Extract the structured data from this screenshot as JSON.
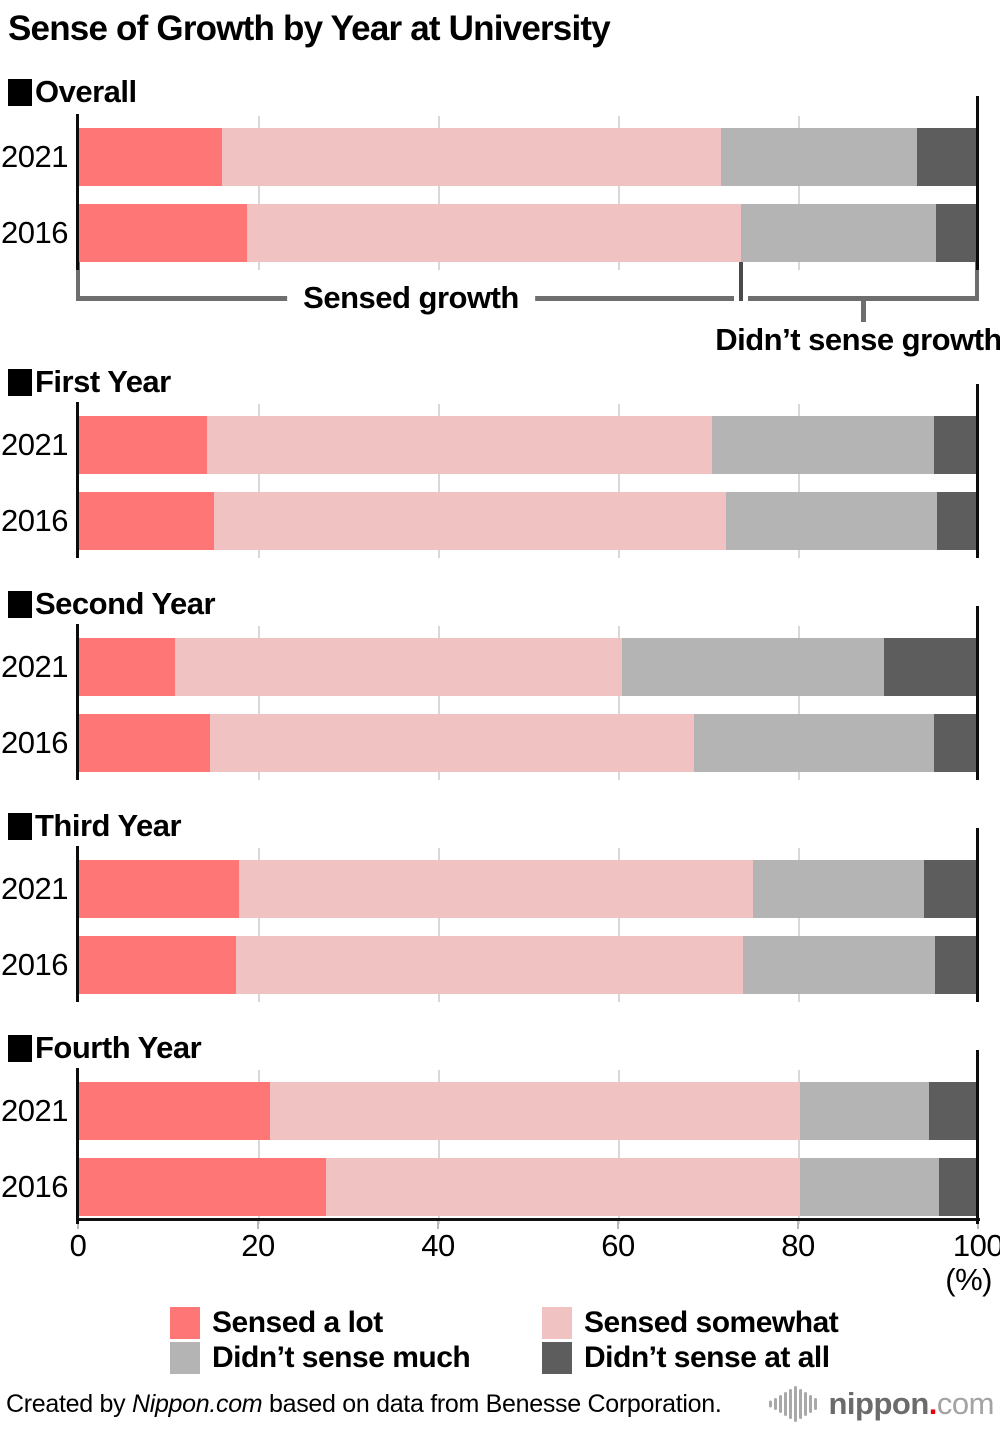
{
  "title": "Sense of Growth by Year at University",
  "chart_data": {
    "type": "bar",
    "stacked": true,
    "orientation": "horizontal",
    "unit": "%",
    "xlim": [
      0,
      100
    ],
    "x_ticks": [
      0,
      20,
      40,
      60,
      80,
      100
    ],
    "x_axis_unit_label": "(%)",
    "legend": [
      "Sensed a lot",
      "Sensed somewhat",
      "Didn’t sense much",
      "Didn’t sense at all"
    ],
    "legend_keys": [
      "sensed-a-lot",
      "sensed-somewhat",
      "didnt-sense-much",
      "didnt-sense-at-all"
    ],
    "colors": [
      "#ff7676",
      "#f1c2c2",
      "#b4b4b4",
      "#5d5d5d"
    ],
    "grid": true,
    "legend_position": "bottom",
    "groups": [
      {
        "label": "Overall",
        "bars": [
          {
            "year": "2021",
            "values": [
              16.0,
              55.4,
              21.8,
              6.8
            ]
          },
          {
            "year": "2016",
            "values": [
              18.8,
              54.9,
              21.6,
              4.7
            ]
          }
        ]
      },
      {
        "label": "First Year",
        "bars": [
          {
            "year": "2021",
            "values": [
              14.3,
              56.2,
              24.6,
              4.9
            ]
          },
          {
            "year": "2016",
            "values": [
              15.1,
              56.9,
              23.5,
              4.5
            ]
          }
        ]
      },
      {
        "label": "Second Year",
        "bars": [
          {
            "year": "2021",
            "values": [
              10.8,
              49.6,
              29.2,
              10.4
            ]
          },
          {
            "year": "2016",
            "values": [
              14.7,
              53.8,
              26.6,
              4.9
            ]
          }
        ]
      },
      {
        "label": "Third Year",
        "bars": [
          {
            "year": "2021",
            "values": [
              17.9,
              57.1,
              19.0,
              6.0
            ]
          },
          {
            "year": "2016",
            "values": [
              17.6,
              56.3,
              21.3,
              4.8
            ]
          }
        ]
      },
      {
        "label": "Fourth Year",
        "bars": [
          {
            "year": "2021",
            "values": [
              21.3,
              58.9,
              14.4,
              5.4
            ]
          },
          {
            "year": "2016",
            "values": [
              27.5,
              52.7,
              15.5,
              4.3
            ]
          }
        ]
      }
    ],
    "annotations": {
      "sensed_growth_label": "Sensed growth",
      "didnt_sense_growth_label": "Didn’t sense growth",
      "divider_percent": 73.7
    }
  },
  "footer": {
    "credit_prefix": "Created by ",
    "credit_source": "Nippon.com",
    "credit_suffix": " based on data from Benesse Corporation.",
    "logo_text": "nippon",
    "logo_dot": ".",
    "logo_suffix": "com"
  }
}
